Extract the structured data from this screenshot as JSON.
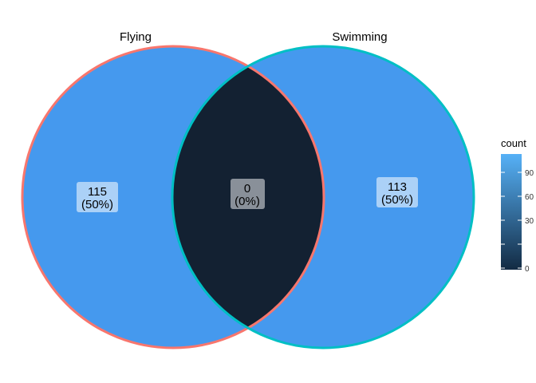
{
  "venn": {
    "sets": [
      {
        "name": "Flying",
        "border_color": "#F8766D"
      },
      {
        "name": "Swimming",
        "border_color": "#00BFC4"
      }
    ],
    "regions": [
      {
        "id": "flying-only",
        "count": "115",
        "percent": "(50%)",
        "fill": "#4599EE"
      },
      {
        "id": "both",
        "count": "0",
        "percent": "(0%)",
        "fill": "#132132"
      },
      {
        "id": "swimming-only",
        "count": "113",
        "percent": "(50%)",
        "fill": "#4599EE"
      }
    ]
  },
  "legend": {
    "title": "count",
    "ticks": [
      "90",
      "60",
      "30",
      "0"
    ],
    "gradient_low": "#132B43",
    "gradient_high": "#56B1F7"
  }
}
